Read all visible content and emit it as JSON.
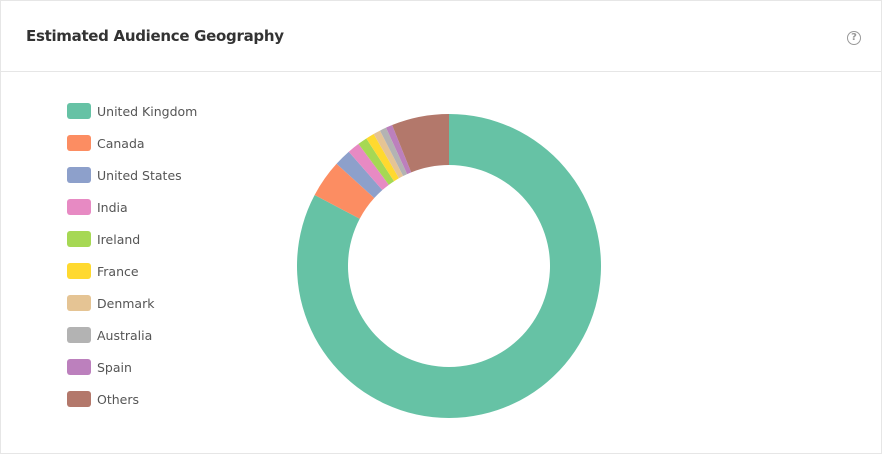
{
  "header": {
    "title": "Estimated Audience Geography",
    "help_icon": "question-circle-icon"
  },
  "chart_data": {
    "type": "pie",
    "variant": "donut",
    "legend_position": "left",
    "categories": [
      "United Kingdom",
      "Canada",
      "United States",
      "India",
      "Ireland",
      "France",
      "Denmark",
      "Australia",
      "Spain",
      "Others"
    ],
    "values": [
      82.7,
      4.0,
      1.8,
      1.3,
      1.0,
      0.9,
      0.75,
      0.7,
      0.7,
      6.1
    ],
    "unit": "percent (estimated)",
    "colors": [
      "#66c2a5",
      "#fc8d62",
      "#8da0cb",
      "#e78ac3",
      "#a6d854",
      "#ffd92f",
      "#e5c494",
      "#b3b3b3",
      "#bc80bd",
      "#b3786b"
    ]
  }
}
